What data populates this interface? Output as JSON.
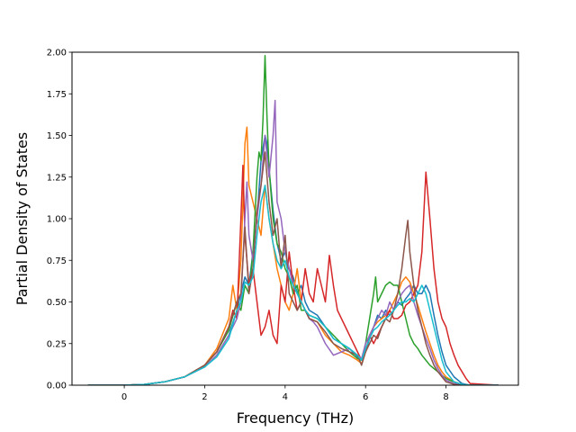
{
  "chart_data": {
    "type": "line",
    "title": "",
    "xlabel": "Frequency (THz)",
    "ylabel": "Partial Density of States",
    "xlim": [
      -1.3,
      9.8
    ],
    "ylim": [
      0,
      2.0
    ],
    "xticks": [
      0,
      2,
      4,
      6,
      8
    ],
    "xtick_labels": [
      "0",
      "2",
      "4",
      "6",
      "8"
    ],
    "yticks": [
      0,
      0.25,
      0.5,
      0.75,
      1.0,
      1.25,
      1.5,
      1.75,
      2.0
    ],
    "ytick_labels": [
      "0.00",
      "0.25",
      "0.50",
      "0.75",
      "1.00",
      "1.25",
      "1.50",
      "1.75",
      "2.00"
    ],
    "grid": false,
    "legend": "none",
    "series": [
      {
        "color": "#1f77b4",
        "x": [
          -0.9,
          0,
          0.5,
          1.0,
          1.5,
          2.0,
          2.3,
          2.6,
          2.8,
          2.9,
          3.0,
          3.1,
          3.2,
          3.3,
          3.4,
          3.5,
          3.55,
          3.6,
          3.7,
          3.8,
          3.9,
          4.0,
          4.1,
          4.2,
          4.3,
          4.4,
          4.5,
          4.6,
          4.8,
          5.0,
          5.2,
          5.4,
          5.6,
          5.8,
          5.9,
          6.0,
          6.1,
          6.2,
          6.3,
          6.4,
          6.5,
          6.6,
          6.7,
          6.8,
          6.9,
          7.0,
          7.1,
          7.2,
          7.3,
          7.4,
          7.5,
          7.6,
          7.7,
          7.8,
          7.9,
          8.0,
          8.2,
          8.4,
          8.6,
          9.3
        ],
        "y": [
          0,
          0,
          0.005,
          0.02,
          0.05,
          0.11,
          0.18,
          0.3,
          0.45,
          0.55,
          0.65,
          0.6,
          0.8,
          1.0,
          1.35,
          1.5,
          1.45,
          1.3,
          1.05,
          0.85,
          0.75,
          0.8,
          0.7,
          0.65,
          0.55,
          0.6,
          0.5,
          0.45,
          0.42,
          0.35,
          0.28,
          0.25,
          0.22,
          0.17,
          0.15,
          0.2,
          0.28,
          0.35,
          0.42,
          0.4,
          0.45,
          0.42,
          0.45,
          0.5,
          0.48,
          0.52,
          0.55,
          0.6,
          0.55,
          0.55,
          0.6,
          0.55,
          0.42,
          0.3,
          0.2,
          0.12,
          0.05,
          0.01,
          0,
          0
        ]
      },
      {
        "color": "#ff7f0e",
        "x": [
          -0.9,
          0,
          0.5,
          1.0,
          1.5,
          2.0,
          2.3,
          2.6,
          2.7,
          2.8,
          2.9,
          3.0,
          3.05,
          3.1,
          3.2,
          3.3,
          3.4,
          3.5,
          3.6,
          3.7,
          3.8,
          3.9,
          4.0,
          4.1,
          4.2,
          4.3,
          4.4,
          4.5,
          4.6,
          4.8,
          5.0,
          5.2,
          5.4,
          5.6,
          5.8,
          5.9,
          6.0,
          6.1,
          6.2,
          6.3,
          6.4,
          6.5,
          6.6,
          6.7,
          6.8,
          6.9,
          7.0,
          7.1,
          7.2,
          7.3,
          7.4,
          7.5,
          7.6,
          7.7,
          7.8,
          7.9,
          8.0,
          8.2,
          8.4,
          8.6,
          9.3
        ],
        "y": [
          0,
          0,
          0.005,
          0.02,
          0.05,
          0.12,
          0.22,
          0.4,
          0.6,
          0.45,
          0.75,
          1.45,
          1.55,
          1.2,
          1.1,
          1.0,
          0.9,
          1.2,
          1.0,
          0.85,
          0.7,
          0.6,
          0.5,
          0.45,
          0.55,
          0.7,
          0.5,
          0.45,
          0.4,
          0.38,
          0.3,
          0.25,
          0.2,
          0.18,
          0.15,
          0.13,
          0.2,
          0.3,
          0.35,
          0.38,
          0.4,
          0.42,
          0.45,
          0.5,
          0.55,
          0.62,
          0.65,
          0.62,
          0.55,
          0.48,
          0.4,
          0.32,
          0.25,
          0.18,
          0.12,
          0.08,
          0.05,
          0.02,
          0.005,
          0,
          0
        ]
      },
      {
        "color": "#2ca02c",
        "x": [
          -0.9,
          0,
          0.5,
          1.0,
          1.5,
          2.0,
          2.3,
          2.6,
          2.8,
          2.9,
          3.0,
          3.1,
          3.2,
          3.3,
          3.35,
          3.4,
          3.45,
          3.5,
          3.55,
          3.6,
          3.7,
          3.8,
          3.9,
          4.0,
          4.1,
          4.2,
          4.3,
          4.4,
          4.5,
          4.6,
          4.8,
          5.0,
          5.2,
          5.4,
          5.6,
          5.8,
          5.9,
          6.0,
          6.1,
          6.2,
          6.25,
          6.3,
          6.4,
          6.5,
          6.6,
          6.7,
          6.8,
          6.9,
          7.0,
          7.1,
          7.2,
          7.3,
          7.4,
          7.5,
          7.6,
          7.7,
          7.8,
          7.9,
          8.0,
          8.2,
          8.4,
          8.6,
          9.3
        ],
        "y": [
          0,
          0,
          0.005,
          0.02,
          0.05,
          0.12,
          0.2,
          0.33,
          0.5,
          0.45,
          0.6,
          0.55,
          0.8,
          1.25,
          1.4,
          1.35,
          1.6,
          1.98,
          1.6,
          1.3,
          1.0,
          0.85,
          0.8,
          0.7,
          0.65,
          0.55,
          0.6,
          0.45,
          0.45,
          0.42,
          0.4,
          0.35,
          0.3,
          0.25,
          0.2,
          0.16,
          0.15,
          0.25,
          0.4,
          0.55,
          0.65,
          0.5,
          0.55,
          0.6,
          0.62,
          0.6,
          0.6,
          0.5,
          0.4,
          0.3,
          0.25,
          0.22,
          0.18,
          0.15,
          0.12,
          0.1,
          0.08,
          0.06,
          0.04,
          0.02,
          0.005,
          0,
          0
        ]
      },
      {
        "color": "#d62728",
        "x": [
          -0.9,
          0,
          0.5,
          1.0,
          1.5,
          2.0,
          2.3,
          2.6,
          2.7,
          2.8,
          2.9,
          2.95,
          3.0,
          3.1,
          3.2,
          3.3,
          3.4,
          3.5,
          3.6,
          3.7,
          3.8,
          3.9,
          4.0,
          4.1,
          4.2,
          4.3,
          4.4,
          4.5,
          4.6,
          4.7,
          4.8,
          4.9,
          5.0,
          5.1,
          5.2,
          5.3,
          5.4,
          5.5,
          5.6,
          5.8,
          5.9,
          6.0,
          6.1,
          6.2,
          6.3,
          6.4,
          6.5,
          6.6,
          6.7,
          6.8,
          6.9,
          7.0,
          7.1,
          7.2,
          7.3,
          7.4,
          7.5,
          7.6,
          7.7,
          7.8,
          7.9,
          8.0,
          8.1,
          8.2,
          8.3,
          8.4,
          8.5,
          8.6,
          9.3
        ],
        "y": [
          0,
          0,
          0.005,
          0.02,
          0.05,
          0.12,
          0.2,
          0.35,
          0.45,
          0.4,
          1.0,
          1.32,
          0.9,
          0.6,
          0.7,
          0.5,
          0.3,
          0.35,
          0.45,
          0.3,
          0.25,
          0.6,
          0.5,
          0.8,
          0.6,
          0.45,
          0.5,
          0.7,
          0.55,
          0.5,
          0.7,
          0.6,
          0.5,
          0.78,
          0.6,
          0.45,
          0.4,
          0.35,
          0.3,
          0.2,
          0.15,
          0.2,
          0.3,
          0.25,
          0.3,
          0.35,
          0.4,
          0.45,
          0.4,
          0.4,
          0.42,
          0.48,
          0.5,
          0.55,
          0.6,
          0.8,
          1.28,
          1.0,
          0.7,
          0.5,
          0.4,
          0.35,
          0.25,
          0.18,
          0.12,
          0.08,
          0.04,
          0.01,
          0
        ]
      },
      {
        "color": "#9467bd",
        "x": [
          -0.9,
          0,
          0.5,
          1.0,
          1.5,
          2.0,
          2.3,
          2.6,
          2.8,
          2.9,
          3.0,
          3.05,
          3.1,
          3.2,
          3.3,
          3.4,
          3.5,
          3.6,
          3.7,
          3.75,
          3.8,
          3.9,
          4.0,
          4.1,
          4.2,
          4.3,
          4.4,
          4.5,
          4.6,
          4.7,
          4.8,
          5.0,
          5.2,
          5.4,
          5.6,
          5.8,
          5.9,
          6.0,
          6.1,
          6.2,
          6.3,
          6.4,
          6.5,
          6.6,
          6.7,
          6.8,
          6.9,
          7.0,
          7.1,
          7.2,
          7.3,
          7.4,
          7.5,
          7.6,
          7.7,
          7.8,
          7.9,
          8.0,
          8.2,
          8.4,
          8.6,
          9.3
        ],
        "y": [
          0,
          0,
          0.005,
          0.02,
          0.05,
          0.11,
          0.18,
          0.3,
          0.4,
          0.5,
          1.0,
          1.22,
          0.9,
          0.75,
          1.0,
          1.2,
          1.5,
          1.25,
          1.5,
          1.71,
          1.1,
          1.0,
          0.8,
          0.7,
          0.6,
          0.55,
          0.5,
          0.45,
          0.4,
          0.38,
          0.35,
          0.25,
          0.18,
          0.2,
          0.22,
          0.18,
          0.16,
          0.25,
          0.3,
          0.35,
          0.4,
          0.45,
          0.42,
          0.5,
          0.45,
          0.5,
          0.55,
          0.58,
          0.6,
          0.5,
          0.42,
          0.35,
          0.28,
          0.22,
          0.15,
          0.1,
          0.06,
          0.03,
          0.01,
          0.005,
          0,
          0
        ]
      },
      {
        "color": "#8c564b",
        "x": [
          -0.9,
          0,
          0.5,
          1.0,
          1.5,
          2.0,
          2.3,
          2.6,
          2.8,
          2.9,
          3.0,
          3.1,
          3.2,
          3.3,
          3.4,
          3.5,
          3.6,
          3.7,
          3.8,
          3.9,
          4.0,
          4.1,
          4.2,
          4.3,
          4.4,
          4.5,
          4.6,
          4.8,
          5.0,
          5.2,
          5.4,
          5.6,
          5.8,
          5.9,
          6.0,
          6.1,
          6.2,
          6.3,
          6.4,
          6.5,
          6.6,
          6.7,
          6.8,
          6.9,
          7.0,
          7.05,
          7.1,
          7.2,
          7.3,
          7.4,
          7.5,
          7.6,
          7.7,
          7.8,
          7.9,
          8.0,
          8.2,
          8.4,
          8.6,
          9.3
        ],
        "y": [
          0,
          0,
          0.005,
          0.02,
          0.05,
          0.12,
          0.2,
          0.35,
          0.5,
          0.55,
          0.95,
          0.55,
          0.7,
          1.05,
          1.2,
          1.4,
          1.1,
          0.9,
          1.0,
          0.7,
          0.9,
          0.55,
          0.5,
          0.45,
          0.5,
          0.45,
          0.4,
          0.38,
          0.32,
          0.25,
          0.22,
          0.2,
          0.18,
          0.12,
          0.2,
          0.25,
          0.3,
          0.28,
          0.35,
          0.4,
          0.38,
          0.45,
          0.55,
          0.7,
          0.9,
          0.99,
          0.8,
          0.6,
          0.45,
          0.35,
          0.25,
          0.18,
          0.12,
          0.08,
          0.05,
          0.02,
          0.005,
          0,
          0,
          0
        ]
      },
      {
        "color": "#17becf",
        "x": [
          -0.9,
          0,
          0.5,
          1.0,
          1.5,
          2.0,
          2.3,
          2.6,
          2.8,
          2.9,
          3.0,
          3.1,
          3.2,
          3.3,
          3.4,
          3.5,
          3.6,
          3.7,
          3.8,
          3.9,
          4.0,
          4.1,
          4.2,
          4.3,
          4.4,
          4.5,
          4.6,
          4.8,
          5.0,
          5.2,
          5.4,
          5.6,
          5.8,
          5.9,
          6.0,
          6.1,
          6.2,
          6.3,
          6.4,
          6.5,
          6.6,
          6.7,
          6.8,
          6.9,
          7.0,
          7.1,
          7.2,
          7.3,
          7.4,
          7.5,
          7.6,
          7.7,
          7.8,
          7.9,
          8.0,
          8.2,
          8.4,
          8.6,
          9.3
        ],
        "y": [
          0,
          0,
          0.005,
          0.02,
          0.05,
          0.11,
          0.17,
          0.28,
          0.45,
          0.5,
          0.62,
          0.6,
          0.65,
          0.9,
          1.1,
          1.2,
          1.0,
          0.85,
          0.75,
          0.7,
          0.75,
          0.65,
          0.6,
          0.55,
          0.5,
          0.45,
          0.42,
          0.4,
          0.35,
          0.28,
          0.25,
          0.22,
          0.18,
          0.15,
          0.22,
          0.28,
          0.33,
          0.35,
          0.38,
          0.4,
          0.42,
          0.45,
          0.48,
          0.5,
          0.5,
          0.52,
          0.5,
          0.55,
          0.6,
          0.55,
          0.45,
          0.35,
          0.25,
          0.15,
          0.08,
          0.02,
          0.005,
          0,
          0
        ]
      }
    ]
  }
}
